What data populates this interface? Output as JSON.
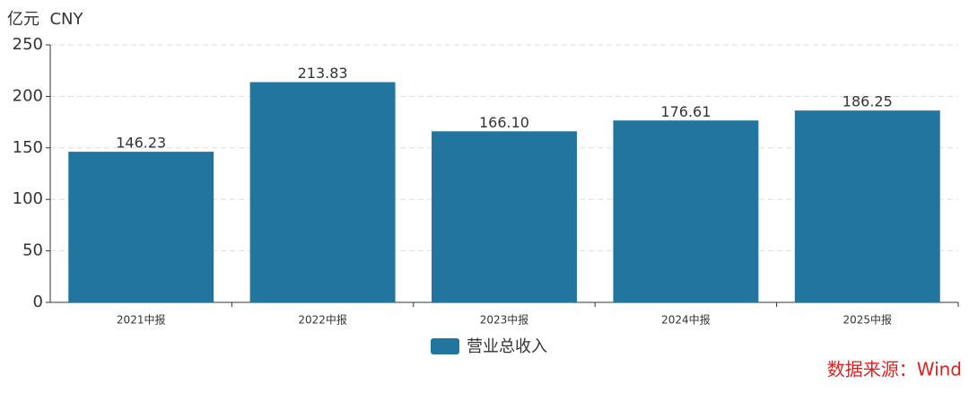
{
  "chart_data": {
    "type": "bar",
    "y_label": "亿元  CNY",
    "categories": [
      "2021中报",
      "2022中报",
      "2023中报",
      "2024中报",
      "2025中报"
    ],
    "series": [
      {
        "name": "营业总收入",
        "color": "#22759f",
        "values": [
          146.23,
          213.83,
          166.1,
          176.61,
          186.25
        ],
        "value_labels": [
          "146.23",
          "213.83",
          "166.10",
          "176.61",
          "186.25"
        ]
      }
    ],
    "ylim": [
      0,
      250
    ],
    "yticks": [
      0,
      50,
      100,
      150,
      200,
      250
    ],
    "grid": true,
    "legend": "bottom",
    "source": "数据来源：Wind"
  }
}
